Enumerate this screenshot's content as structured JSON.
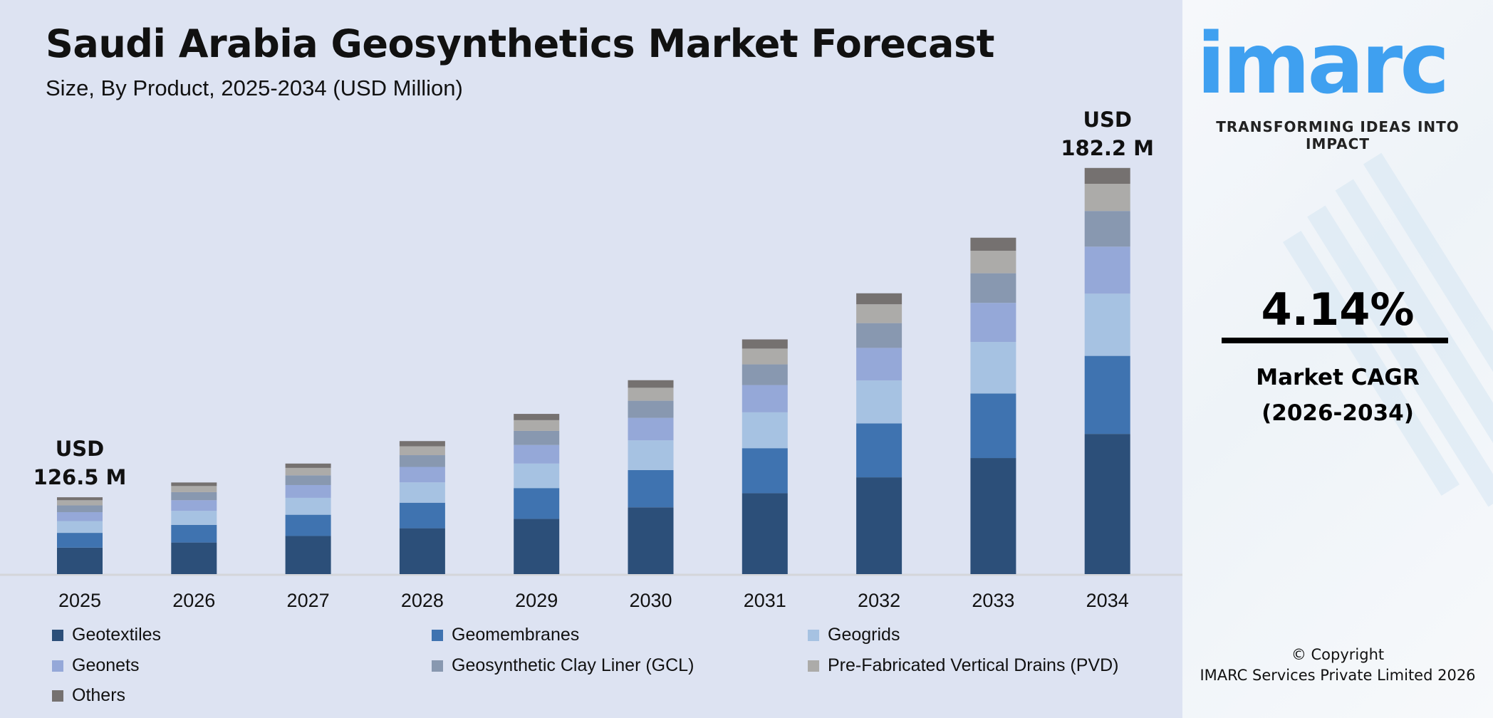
{
  "header": {
    "title": "Saudi Arabia Geosynthetics Market Forecast",
    "subtitle": "Size, By Product, 2025-2034 (USD Million)"
  },
  "chart_data": {
    "type": "bar",
    "stacked": true,
    "title": "Saudi Arabia Geosynthetics Market Forecast",
    "subtitle": "Size, By Product, 2025-2034 (USD Million)",
    "categories": [
      "2025",
      "2026",
      "2027",
      "2028",
      "2029",
      "2030",
      "2031",
      "2032",
      "2033",
      "2034"
    ],
    "series": [
      {
        "name": "Geotextiles",
        "color": "#2c4f79",
        "values": [
          43.6,
          44.5,
          45.6,
          46.9,
          48.5,
          50.4,
          52.8,
          55.5,
          58.8,
          62.9
        ]
      },
      {
        "name": "Geomembranes",
        "color": "#3f73b0",
        "values": [
          24.3,
          24.8,
          25.4,
          26.1,
          27.0,
          28.1,
          29.4,
          30.9,
          32.7,
          35.0
        ]
      },
      {
        "name": "Geogrids",
        "color": "#a6c2e2",
        "values": [
          19.4,
          19.7,
          20.2,
          20.8,
          21.5,
          22.4,
          23.4,
          24.6,
          26.1,
          27.9
        ]
      },
      {
        "name": "Geonets",
        "color": "#95a8d8",
        "values": [
          14.7,
          15.0,
          15.3,
          15.8,
          16.3,
          17.0,
          17.8,
          18.7,
          19.8,
          21.1
        ]
      },
      {
        "name": "Geosynthetic Clay Liner (GCL)",
        "color": "#8898b0",
        "values": [
          11.1,
          11.4,
          11.6,
          12.0,
          12.4,
          12.9,
          13.5,
          14.2,
          15.0,
          16.0
        ]
      },
      {
        "name": "Pre-Fabricated Vertical Drains (PVD)",
        "color": "#acaba9",
        "values": [
          8.5,
          8.6,
          8.9,
          9.1,
          9.4,
          9.8,
          10.3,
          10.8,
          11.4,
          12.2
        ]
      },
      {
        "name": "Others",
        "color": "#757170",
        "values": [
          4.9,
          5.0,
          5.2,
          5.3,
          5.5,
          5.7,
          6.0,
          6.3,
          6.6,
          7.1
        ]
      }
    ],
    "annotations": [
      {
        "category": "2025",
        "line1": "USD",
        "line2": "126.5 M"
      },
      {
        "category": "2034",
        "line1": "USD",
        "line2": "182.2 M"
      }
    ],
    "y_axis_visible": false,
    "grid": false,
    "legend_position": "bottom"
  },
  "sidebar": {
    "logo_text": "imarc",
    "tagline": "TRANSFORMING IDEAS INTO IMPACT",
    "cagr_value": "4.14%",
    "cagr_label_1": "Market CAGR",
    "cagr_label_2": "(2026-2034)",
    "copyright_1": "© Copyright",
    "copyright_2": "IMARC Services Private Limited 2026",
    "brand_color": "#3fa0f0"
  },
  "colors": {
    "background": "#dde3f2"
  }
}
